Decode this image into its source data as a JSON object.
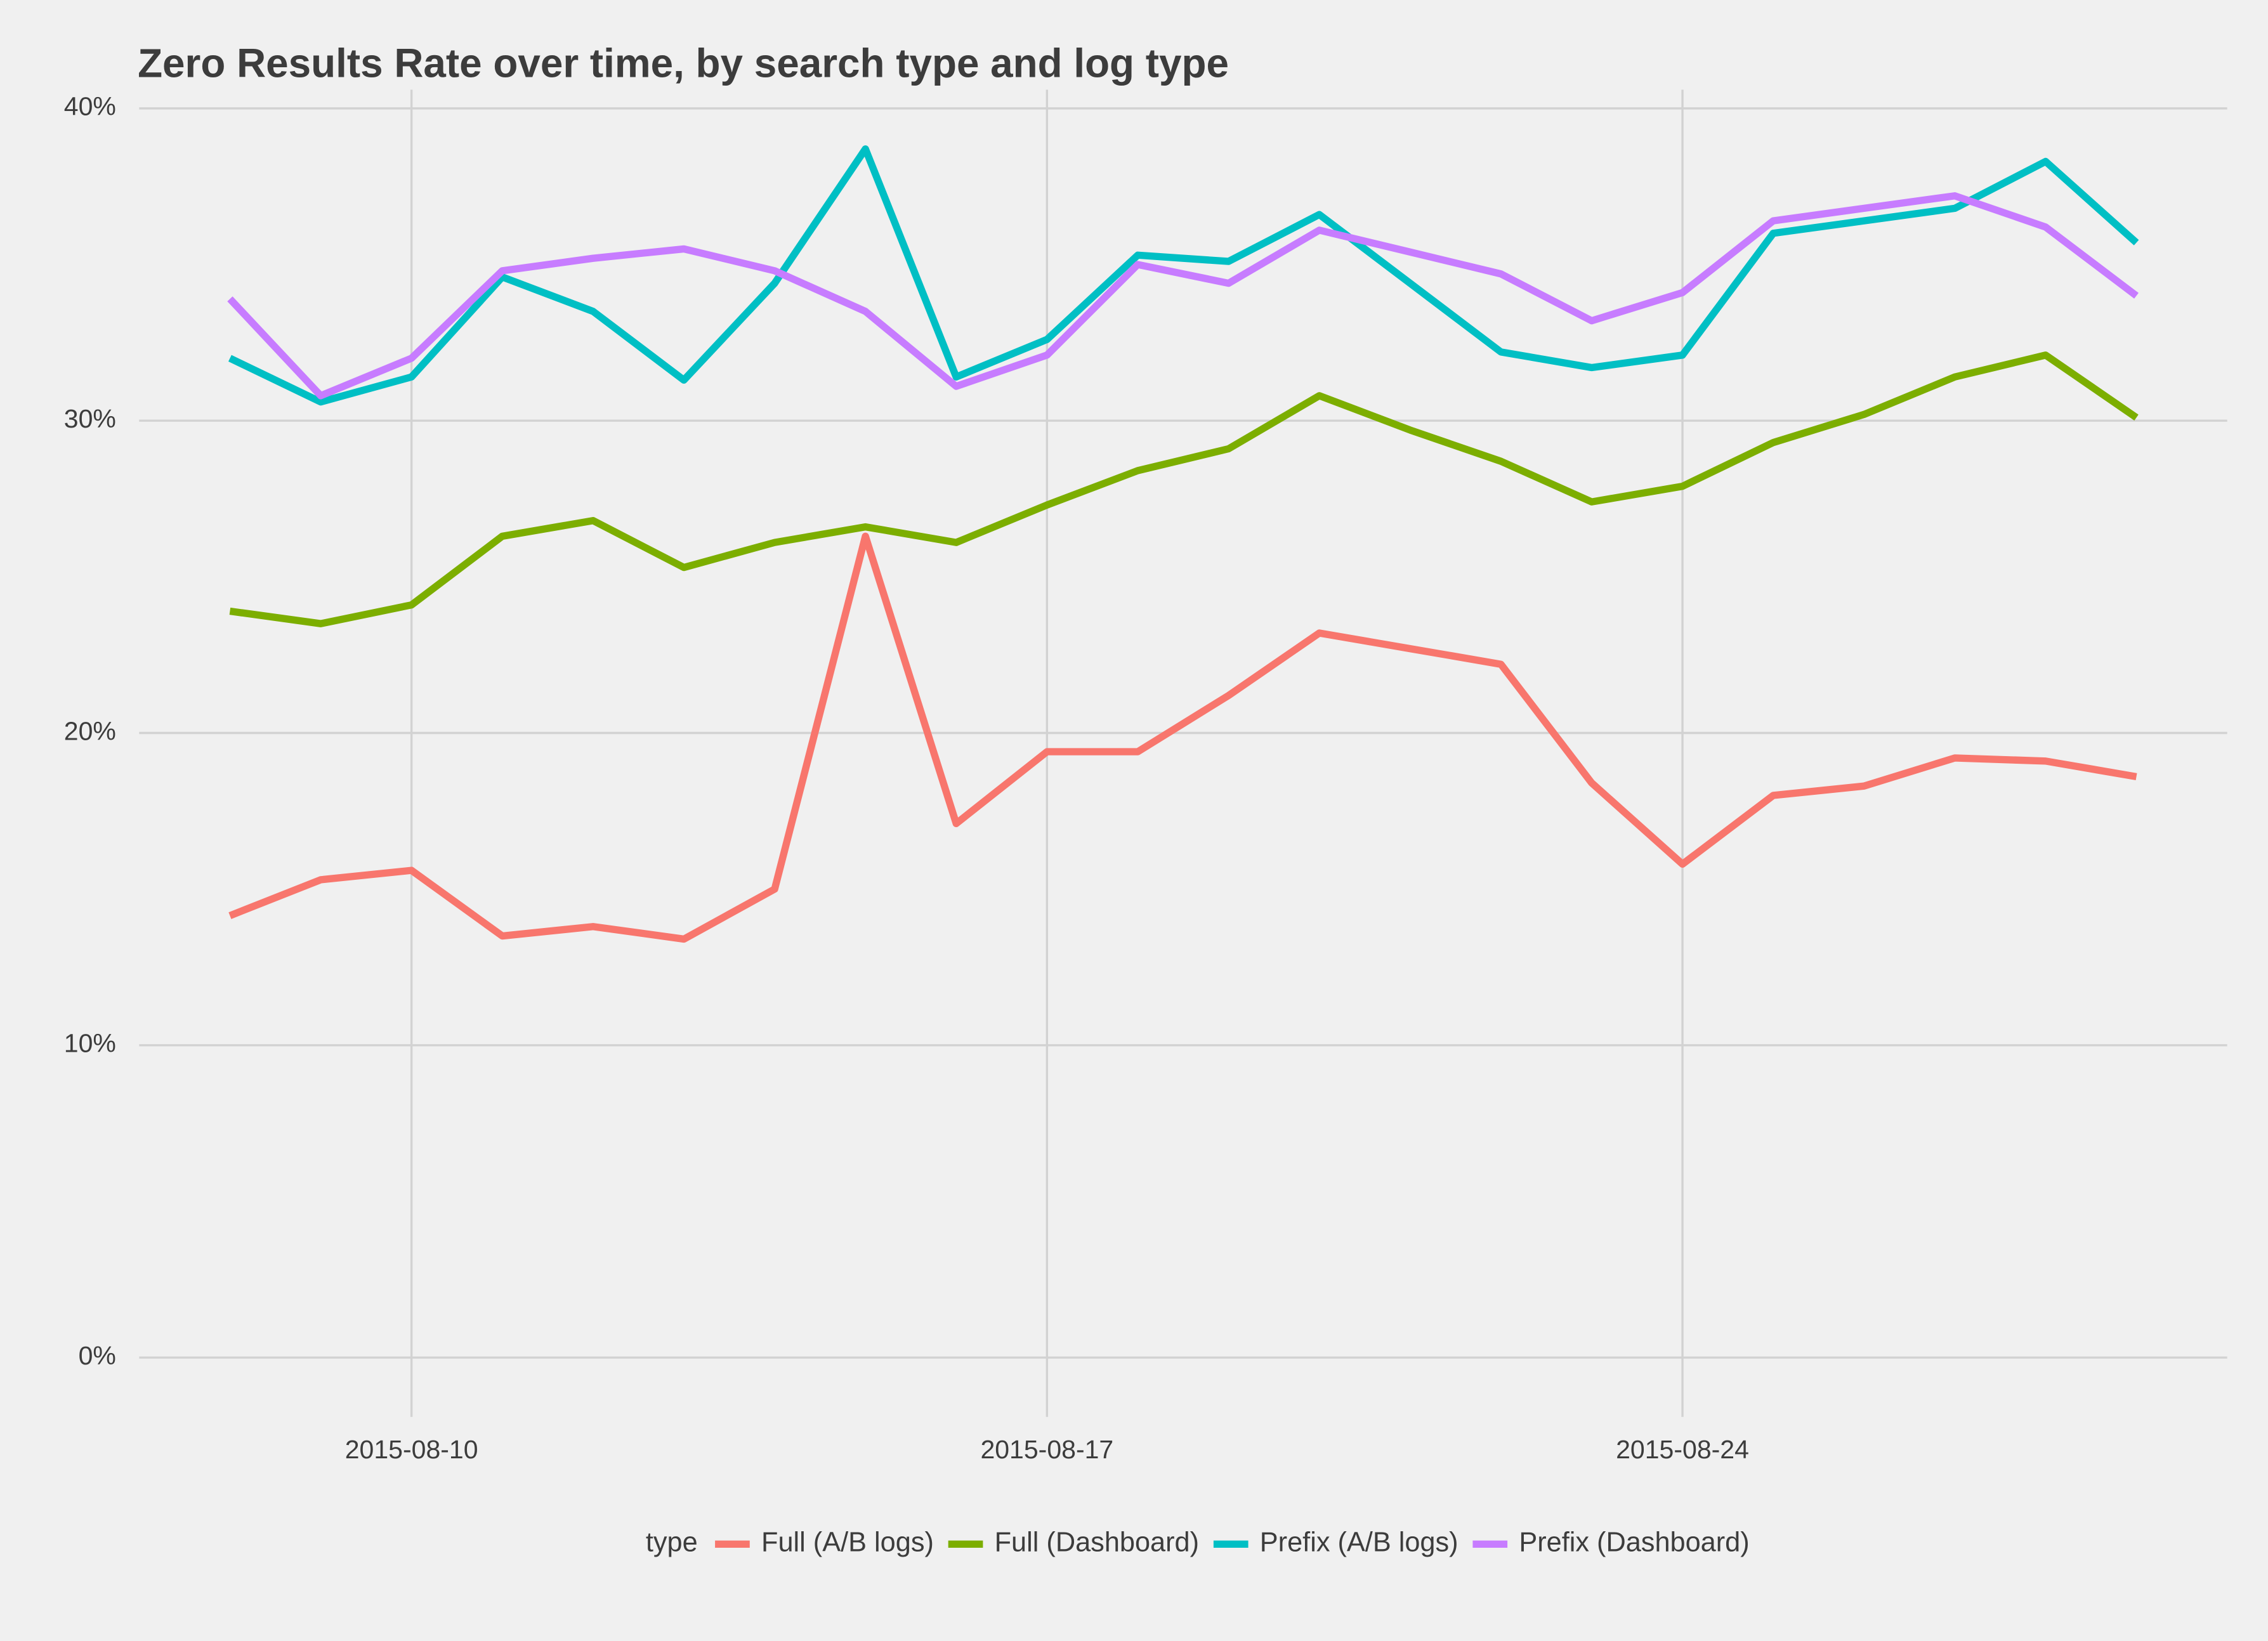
{
  "chart_data": {
    "type": "line",
    "title": "Zero Results Rate over time, by search type and log type",
    "x": [
      "2015-08-08",
      "2015-08-09",
      "2015-08-10",
      "2015-08-11",
      "2015-08-12",
      "2015-08-13",
      "2015-08-14",
      "2015-08-15",
      "2015-08-16",
      "2015-08-17",
      "2015-08-18",
      "2015-08-19",
      "2015-08-20",
      "2015-08-21",
      "2015-08-22",
      "2015-08-23",
      "2015-08-24",
      "2015-08-25",
      "2015-08-26",
      "2015-08-27",
      "2015-08-28",
      "2015-08-29"
    ],
    "series": [
      {
        "name": "Full (A/B logs)",
        "color": "#F8766D",
        "values": [
          14.15,
          15.3,
          15.6,
          13.5,
          13.8,
          13.4,
          15.0,
          26.3,
          17.1,
          19.4,
          19.4,
          21.2,
          23.2,
          22.7,
          22.2,
          18.4,
          15.8,
          18.0,
          18.3,
          19.2,
          19.1,
          18.6
        ]
      },
      {
        "name": "Full (Dashboard)",
        "color": "#7CAE00",
        "values": [
          23.9,
          23.5,
          24.1,
          26.3,
          26.8,
          25.3,
          26.1,
          26.6,
          26.1,
          27.3,
          28.4,
          29.1,
          30.8,
          29.7,
          28.7,
          27.4,
          27.9,
          29.3,
          30.2,
          31.4,
          32.1,
          30.1
        ]
      },
      {
        "name": "Prefix (A/B logs)",
        "color": "#00BFC4",
        "values": [
          32.0,
          30.6,
          31.4,
          34.6,
          33.5,
          31.3,
          34.4,
          38.7,
          31.4,
          32.6,
          35.3,
          35.1,
          36.6,
          34.4,
          32.2,
          31.7,
          32.1,
          36.0,
          36.4,
          36.8,
          38.3,
          35.7
        ]
      },
      {
        "name": "Prefix (Dashboard)",
        "color": "#C77CFF",
        "values": [
          33.9,
          30.8,
          32.0,
          34.8,
          35.2,
          35.5,
          34.8,
          33.5,
          31.1,
          32.1,
          35.0,
          34.4,
          36.1,
          35.4,
          34.7,
          33.2,
          34.1,
          36.4,
          36.8,
          37.2,
          36.2,
          34.0
        ]
      }
    ],
    "xlim": [
      "2015-08-07",
      "2015-08-30"
    ],
    "xticks": [
      "2015-08-10",
      "2015-08-17",
      "2015-08-24"
    ],
    "ylim": [
      -1.9,
      40.6
    ],
    "yticks": [
      {
        "value": 0,
        "label": "0%"
      },
      {
        "value": 10,
        "label": "10%"
      },
      {
        "value": 20,
        "label": "20%"
      },
      {
        "value": 30,
        "label": "30%"
      },
      {
        "value": 40,
        "label": "40%"
      }
    ],
    "grid": true,
    "legend_title": "type",
    "legend_position": "bottom"
  }
}
